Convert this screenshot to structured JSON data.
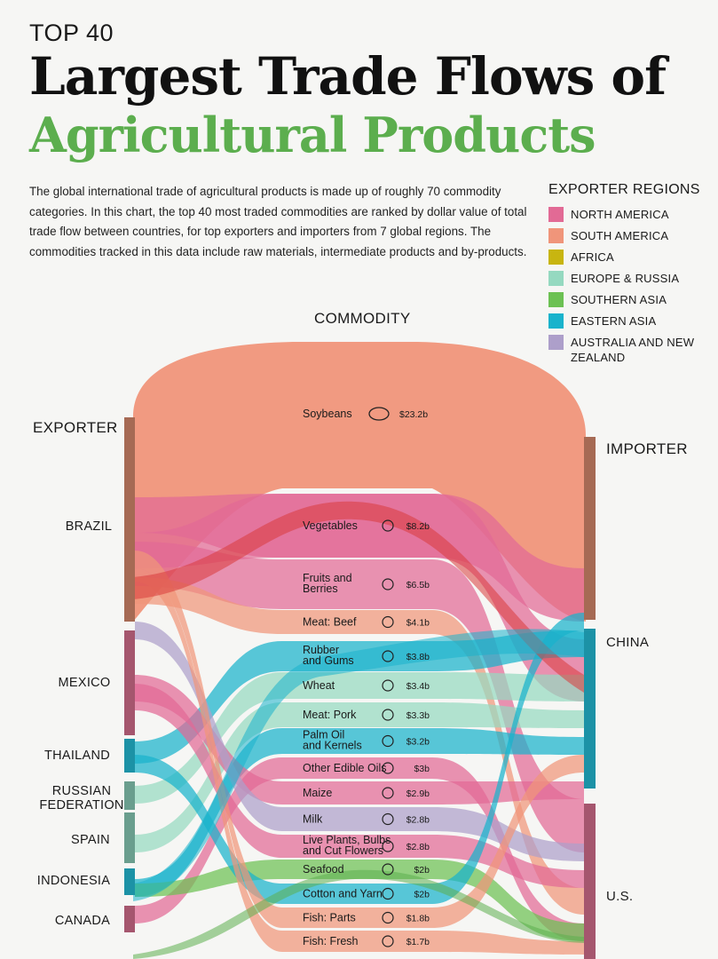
{
  "header": {
    "kicker": "TOP 40",
    "title_line1": "Largest Trade Flows of",
    "title_line2": "Agricultural Products",
    "intro": "The global international trade of agricultural products is made up of roughly 70 commodity categories. In this chart, the top 40 most traded commodities are ranked by dollar value of total trade flow between countries, for top exporters and importers from 7 global regions. The commodities tracked in this data include raw materials, intermediate products and by-products."
  },
  "legend": {
    "title": "EXPORTER REGIONS",
    "items": [
      {
        "label": "NORTH AMERICA",
        "color": "#e26a95"
      },
      {
        "label": "SOUTH AMERICA",
        "color": "#f0957a"
      },
      {
        "label": "AFRICA",
        "color": "#c8b510"
      },
      {
        "label": "EUROPE & RUSSIA",
        "color": "#95d9c0"
      },
      {
        "label": "SOUTHERN ASIA",
        "color": "#6cc153"
      },
      {
        "label": "EASTERN ASIA",
        "color": "#19b3cc"
      },
      {
        "label": "AUSTRALIA AND NEW ZEALAND",
        "color": "#ad9fca"
      }
    ]
  },
  "columns": {
    "exporter": "EXPORTER",
    "commodity": "COMMODITY",
    "importer": "IMPORTER"
  },
  "exporters": [
    {
      "label": "BRAZIL",
      "color": "#a66a54"
    },
    {
      "label": "MEXICO",
      "color": "#a5566e"
    },
    {
      "label": "THAILAND",
      "color": "#1c92a6"
    },
    {
      "label": "RUSSIAN FEDERATION",
      "color": "#6a9e8e"
    },
    {
      "label": "SPAIN",
      "color": "#6a9e8e"
    },
    {
      "label": "INDONESIA",
      "color": "#1c92a6"
    },
    {
      "label": "CANADA",
      "color": "#a5566e"
    }
  ],
  "importers": [
    {
      "label": "IMPORTER"
    },
    {
      "label": "CHINA"
    },
    {
      "label": "U.S."
    }
  ],
  "chart_data": {
    "type": "sankey",
    "title": "Largest Trade Flows of Agricultural Products",
    "unit": "USD billions",
    "commodities": [
      {
        "name": "Soybeans",
        "value_label": "$23.2b",
        "value": 23.2,
        "region": "South America"
      },
      {
        "name": "Vegetables",
        "value_label": "$8.2b",
        "value": 8.2,
        "region": "North America"
      },
      {
        "name": "Fruits and Berries",
        "value_label": "$6.5b",
        "value": 6.5,
        "region": "North America"
      },
      {
        "name": "Meat: Beef",
        "value_label": "$4.1b",
        "value": 4.1,
        "region": "South America"
      },
      {
        "name": "Rubber and Gums",
        "value_label": "$3.8b",
        "value": 3.8,
        "region": "Eastern Asia"
      },
      {
        "name": "Wheat",
        "value_label": "$3.4b",
        "value": 3.4,
        "region": "Europe & Russia"
      },
      {
        "name": "Meat: Pork",
        "value_label": "$3.3b",
        "value": 3.3,
        "region": "Europe & Russia"
      },
      {
        "name": "Palm Oil and Kernels",
        "value_label": "$3.2b",
        "value": 3.2,
        "region": "Eastern Asia"
      },
      {
        "name": "Other Edible Oils",
        "value_label": "$3b",
        "value": 3.0,
        "region": "North America"
      },
      {
        "name": "Maize",
        "value_label": "$2.9b",
        "value": 2.9,
        "region": "North America"
      },
      {
        "name": "Milk",
        "value_label": "$2.8b",
        "value": 2.8,
        "region": "Australia and New Zealand"
      },
      {
        "name": "Live Plants, Bulbs and Cut Flowers",
        "value_label": "$2.8b",
        "value": 2.8,
        "region": "North America"
      },
      {
        "name": "Seafood",
        "value_label": "$2b",
        "value": 2.0,
        "region": "Southern Asia"
      },
      {
        "name": "Cotton and Yarn",
        "value_label": "$2b",
        "value": 2.0,
        "region": "Eastern Asia"
      },
      {
        "name": "Fish: Parts",
        "value_label": "$1.8b",
        "value": 1.8,
        "region": "South America"
      },
      {
        "name": "Fish: Fresh",
        "value_label": "$1.7b",
        "value": 1.7,
        "region": "South America"
      }
    ],
    "exporters": [
      "Brazil",
      "Mexico",
      "Thailand",
      "Russian Federation",
      "Spain",
      "Indonesia",
      "Canada"
    ],
    "importers": [
      "China",
      "U.S."
    ]
  }
}
